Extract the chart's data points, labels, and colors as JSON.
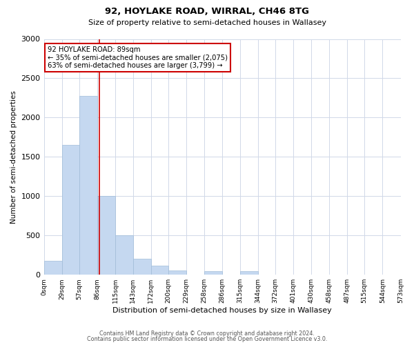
{
  "title": "92, HOYLAKE ROAD, WIRRAL, CH46 8TG",
  "subtitle": "Size of property relative to semi-detached houses in Wallasey",
  "xlabel": "Distribution of semi-detached houses by size in Wallasey",
  "ylabel": "Number of semi-detached properties",
  "bar_color": "#c5d8f0",
  "bar_edge_color": "#a0bcd8",
  "bin_edges": [
    0,
    29,
    57,
    86,
    115,
    143,
    172,
    200,
    229,
    258,
    286,
    315,
    344,
    372,
    401,
    430,
    458,
    487,
    515,
    544,
    573
  ],
  "bin_labels": [
    "0sqm",
    "29sqm",
    "57sqm",
    "86sqm",
    "115sqm",
    "143sqm",
    "172sqm",
    "200sqm",
    "229sqm",
    "258sqm",
    "286sqm",
    "315sqm",
    "344sqm",
    "372sqm",
    "401sqm",
    "430sqm",
    "458sqm",
    "487sqm",
    "515sqm",
    "544sqm",
    "573sqm"
  ],
  "bar_heights": [
    175,
    1650,
    2275,
    1005,
    505,
    205,
    115,
    55,
    0,
    50,
    0,
    50,
    0,
    0,
    0,
    0,
    0,
    0,
    0,
    0
  ],
  "property_size": 89,
  "property_line_color": "#cc0000",
  "annotation_line1": "92 HOYLAKE ROAD: 89sqm",
  "annotation_line2": "← 35% of semi-detached houses are smaller (2,075)",
  "annotation_line3": "63% of semi-detached houses are larger (3,799) →",
  "annotation_box_color": "#ffffff",
  "annotation_box_edge_color": "#cc0000",
  "ylim": [
    0,
    3000
  ],
  "yticks": [
    0,
    500,
    1000,
    1500,
    2000,
    2500,
    3000
  ],
  "footer_line1": "Contains HM Land Registry data © Crown copyright and database right 2024.",
  "footer_line2": "Contains public sector information licensed under the Open Government Licence v3.0.",
  "background_color": "#ffffff",
  "grid_color": "#d0d8e8"
}
